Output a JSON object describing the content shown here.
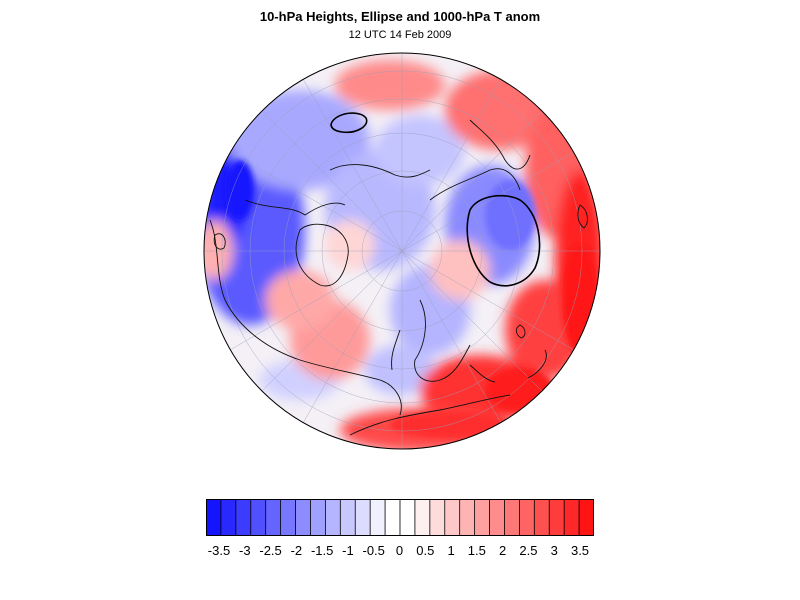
{
  "title": "10-hPa Heights, Ellipse and 1000-hPa T anom",
  "subtitle": "12 UTC 14 Feb 2009",
  "colorbar": {
    "labels": [
      "-3.5",
      "-3",
      "-2.5",
      "-2",
      "-1.5",
      "-1",
      "-0.5",
      "0",
      "0.5",
      "1",
      "1.5",
      "2",
      "2.5",
      "3",
      "3.5"
    ],
    "colors": [
      "#1414ff",
      "#2828ff",
      "#3c3cff",
      "#5050ff",
      "#6464ff",
      "#7878ff",
      "#8c8cff",
      "#a0a0ff",
      "#b4b4ff",
      "#c8c8ff",
      "#dcdcff",
      "#f0f0ff",
      "#ffffff",
      "#ffffff",
      "#fff0f0",
      "#ffdcdc",
      "#ffc8c8",
      "#ffb4b4",
      "#ffa0a0",
      "#ff8c8c",
      "#ff7878",
      "#ff6464",
      "#ff5050",
      "#ff3c3c",
      "#ff2828",
      "#ff1414"
    ]
  },
  "map": {
    "projection": "orthographic-north-polar",
    "field": "1000-hPa temperature anomaly",
    "ellipse_contours": 2
  }
}
